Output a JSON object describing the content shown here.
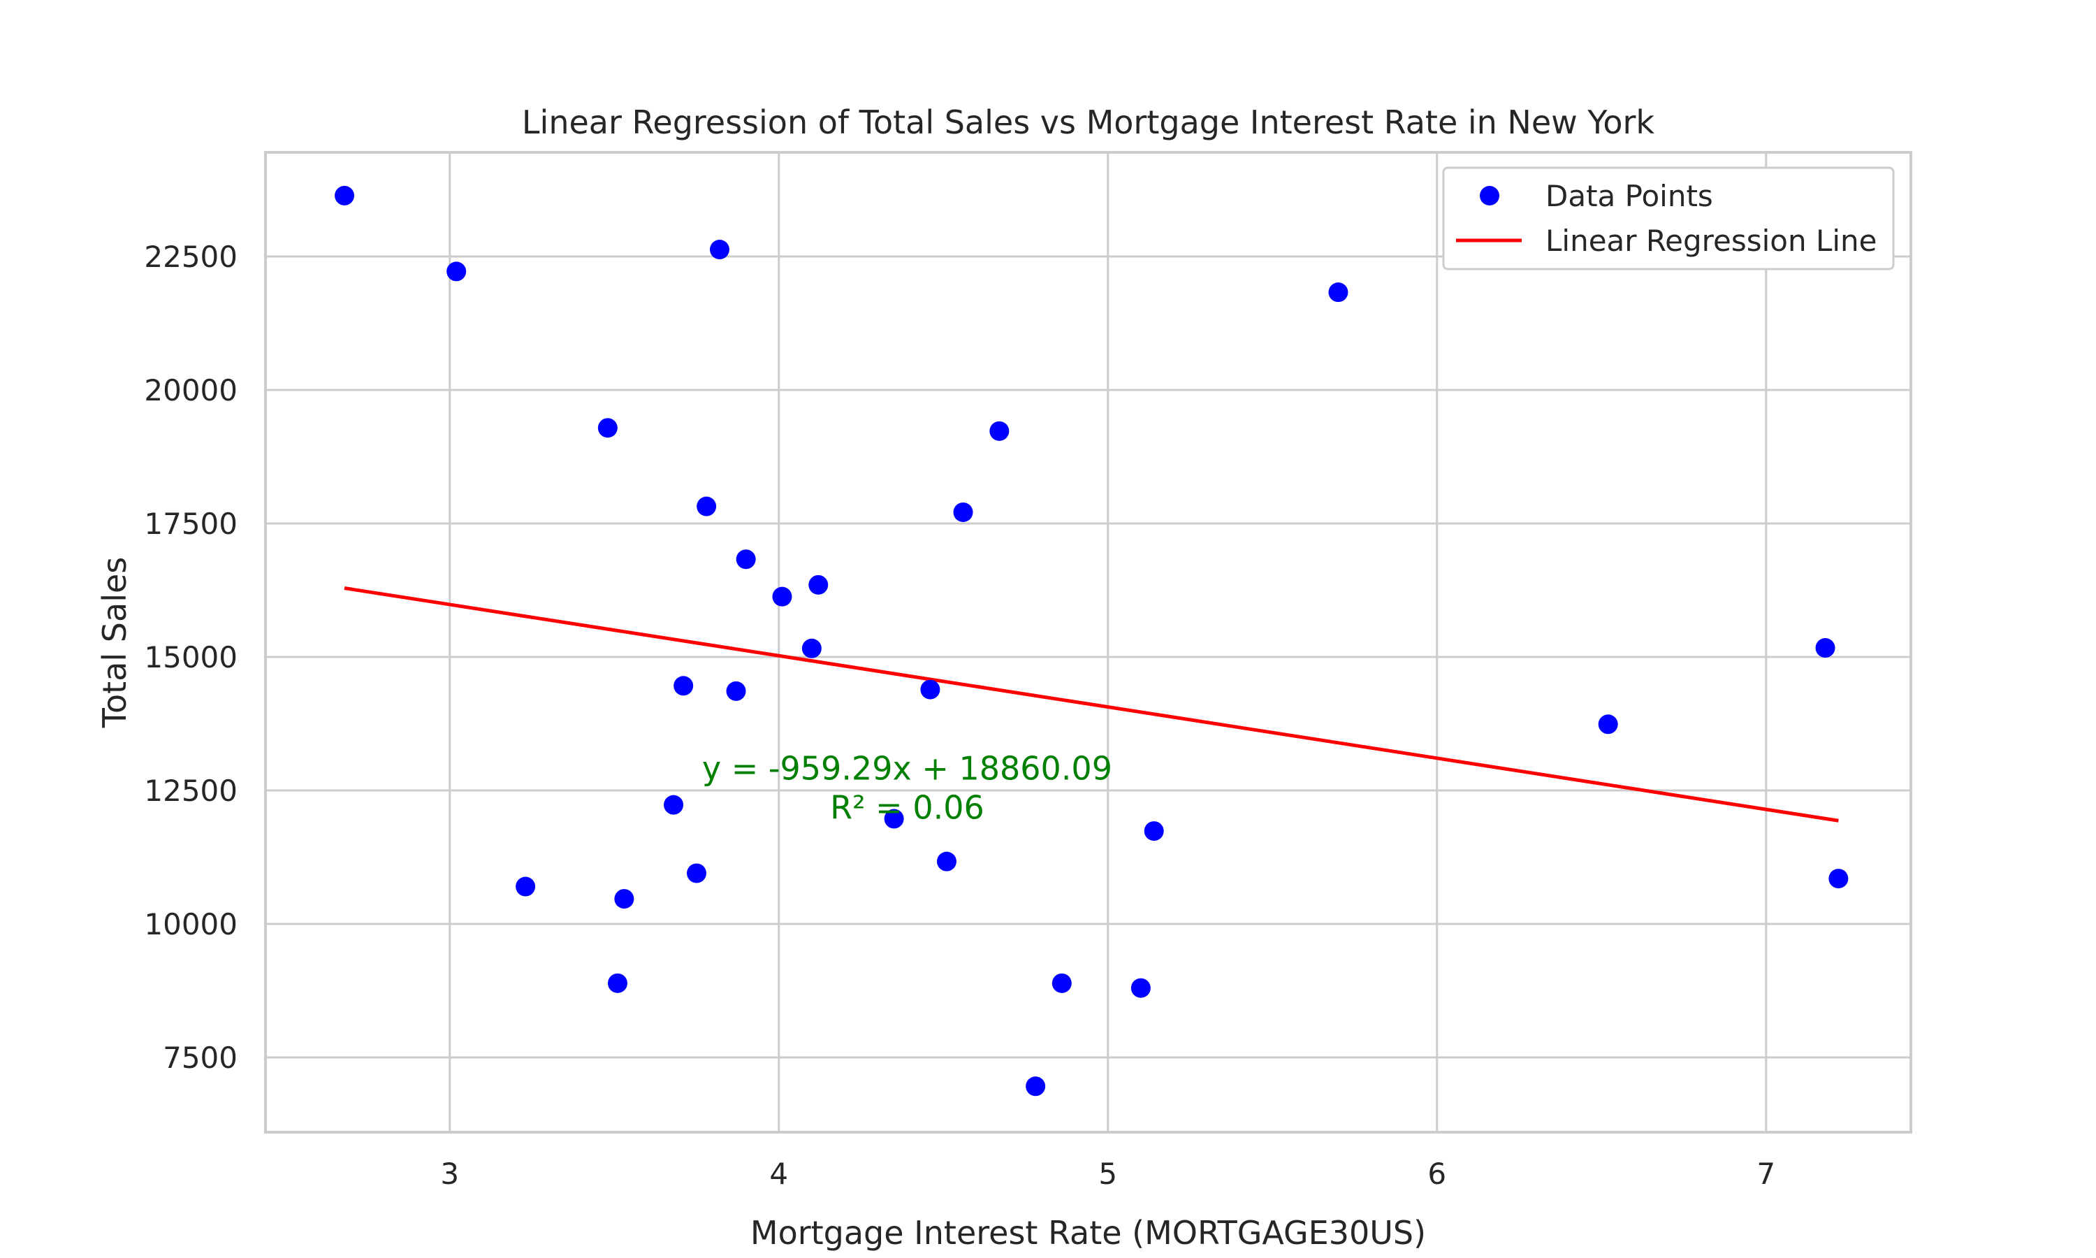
{
  "chart_data": {
    "type": "scatter",
    "title": "Linear Regression of Total Sales vs Mortgage Interest Rate in New York",
    "xlabel": "Mortgage Interest Rate (MORTGAGE30US)",
    "ylabel": "Total Sales",
    "xlim": [
      2.44,
      7.44
    ],
    "ylim": [
      6100,
      24450
    ],
    "x_ticks": [
      3,
      4,
      5,
      6,
      7
    ],
    "x_tick_labels": [
      "3",
      "4",
      "5",
      "6",
      "7"
    ],
    "y_ticks": [
      7500,
      10000,
      12500,
      15000,
      17500,
      20000,
      22500
    ],
    "y_tick_labels": [
      "7500",
      "10000",
      "12500",
      "15000",
      "17500",
      "20000",
      "22500"
    ],
    "grid": true,
    "legend_position": "top-right",
    "series": [
      {
        "name": "Data Points",
        "kind": "scatter",
        "color": "#0000ff",
        "points": [
          {
            "x": 2.68,
            "y": 23640
          },
          {
            "x": 3.02,
            "y": 22220
          },
          {
            "x": 3.23,
            "y": 10700
          },
          {
            "x": 3.48,
            "y": 19290
          },
          {
            "x": 3.51,
            "y": 8890
          },
          {
            "x": 3.53,
            "y": 10470
          },
          {
            "x": 3.68,
            "y": 12230
          },
          {
            "x": 3.71,
            "y": 14460
          },
          {
            "x": 3.75,
            "y": 10950
          },
          {
            "x": 3.78,
            "y": 17820
          },
          {
            "x": 3.82,
            "y": 22630
          },
          {
            "x": 3.87,
            "y": 14360
          },
          {
            "x": 3.9,
            "y": 16830
          },
          {
            "x": 4.01,
            "y": 16130
          },
          {
            "x": 4.1,
            "y": 15160
          },
          {
            "x": 4.12,
            "y": 16350
          },
          {
            "x": 4.35,
            "y": 11970
          },
          {
            "x": 4.46,
            "y": 14390
          },
          {
            "x": 4.51,
            "y": 11170
          },
          {
            "x": 4.56,
            "y": 17710
          },
          {
            "x": 4.67,
            "y": 19230
          },
          {
            "x": 4.78,
            "y": 6960
          },
          {
            "x": 4.86,
            "y": 8890
          },
          {
            "x": 5.1,
            "y": 8800
          },
          {
            "x": 5.14,
            "y": 11740
          },
          {
            "x": 5.7,
            "y": 21830
          },
          {
            "x": 6.52,
            "y": 13740
          },
          {
            "x": 7.18,
            "y": 15170
          },
          {
            "x": 7.22,
            "y": 10850
          }
        ]
      },
      {
        "name": "Linear Regression Line",
        "kind": "line",
        "color": "#ff0000",
        "points": [
          {
            "x": 2.68,
            "y": 16289
          },
          {
            "x": 7.22,
            "y": 11934
          }
        ]
      }
    ],
    "annotation": {
      "equation": "y = -959.29x + 18860.09",
      "r_squared": "R² = 0.06",
      "color": "#008000",
      "anchor_x": 4.39,
      "anchor_y": 12700
    },
    "colors": {
      "axes_edge": "#cccccc",
      "grid": "#cccccc",
      "text": "#262626"
    }
  }
}
